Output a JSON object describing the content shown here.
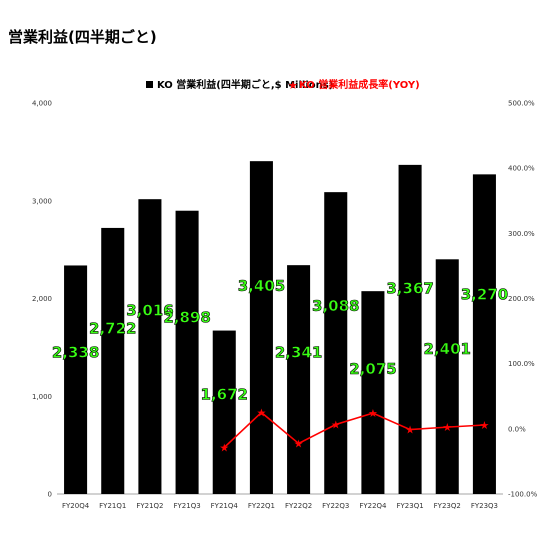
{
  "page": {
    "title": "営業利益(四半期ごと)"
  },
  "chart_data": {
    "type": "bar",
    "title": "営業利益(四半期ごと)",
    "categories": [
      "FY20Q4",
      "FY21Q1",
      "FY21Q2",
      "FY21Q3",
      "FY21Q4",
      "FY22Q1",
      "FY22Q2",
      "FY22Q3",
      "FY22Q4",
      "FY23Q1",
      "FY23Q2",
      "FY23Q3"
    ],
    "series": [
      {
        "name": "KO 営業利益(四半期ごと,$ Millions)",
        "type": "bar",
        "axis": "left",
        "color": "#000000",
        "values": [
          2338,
          2722,
          3016,
          2898,
          1672,
          3405,
          2341,
          3088,
          2075,
          3367,
          2401,
          3270
        ],
        "data_labels": [
          "2,338",
          "2,722",
          "3,016",
          "2,898",
          "1,672",
          "3,405",
          "2,341",
          "3,088",
          "2,075",
          "3,367",
          "2,401",
          "3,270"
        ]
      },
      {
        "name": "KO 営業利益成長率(YOY)",
        "type": "line",
        "axis": "right",
        "color": "#ff0000",
        "values": [
          null,
          null,
          null,
          null,
          -28.5,
          25.1,
          -22.4,
          6.6,
          24.1,
          -1.1,
          2.6,
          5.9
        ]
      }
    ],
    "y_left": {
      "lim": [
        0,
        4000
      ],
      "ticks": [
        0,
        1000,
        2000,
        3000,
        4000
      ],
      "tick_labels": [
        "0",
        "1,000",
        "2,000",
        "3,000",
        "4,000"
      ]
    },
    "y_right": {
      "lim": [
        -100,
        500
      ],
      "ticks": [
        -100,
        0,
        100,
        200,
        300,
        400,
        500
      ],
      "tick_labels": [
        "-100.0%",
        "0.0%",
        "100.0%",
        "200.0%",
        "300.0%",
        "400.0%",
        "500.0%"
      ]
    },
    "xlabel": "",
    "ylabel": "",
    "grid": false,
    "legend": "top-center",
    "data_label_color": "#39ff14"
  }
}
